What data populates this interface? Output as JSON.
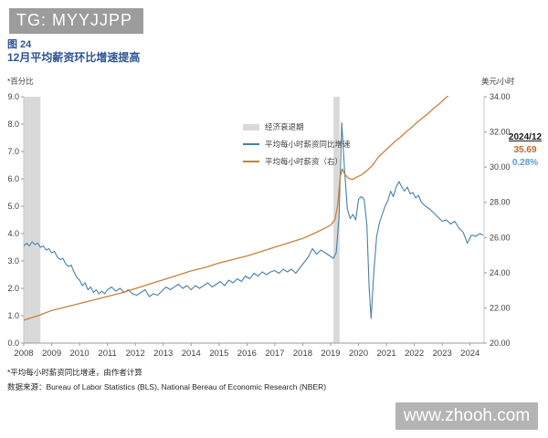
{
  "watermarks": {
    "telegram": "TG: MYYJJPP",
    "site": "www.zhooh.com"
  },
  "figure": {
    "number": "图 24",
    "title": "12月平均薪资环比增速提高"
  },
  "units": {
    "left": "*百分比",
    "right": "美元/小时"
  },
  "legend": {
    "items": [
      {
        "label": "经济衰退期",
        "kind": "band",
        "color": "#d9d9d9"
      },
      {
        "label": "平均每小时薪资同比增速",
        "kind": "line",
        "color": "#4a7fa8"
      },
      {
        "label": "平均每小时薪资（右）",
        "kind": "line",
        "color": "#c8803c"
      }
    ]
  },
  "callout": {
    "date": "2024/12",
    "value": "35.69",
    "percent": "0.28%",
    "value_color": "#c0662a",
    "percent_color": "#5b9bd5"
  },
  "footnotes": {
    "note": "*平均每小时薪资同比增速，由作者计算",
    "source": "数据来源：Bureau of Labor Statistics (BLS), National Bereau of Economic Research (NBER)"
  },
  "chart_data": {
    "type": "line",
    "title": "12月平均薪资环比增速提高",
    "x_domain": [
      2008,
      2024.5
    ],
    "x_ticks": [
      2008,
      2009,
      2010,
      2011,
      2012,
      2013,
      2014,
      2015,
      2016,
      2017,
      2018,
      2019,
      2020,
      2021,
      2022,
      2023,
      2024
    ],
    "left_axis": {
      "label": "*百分比",
      "min": 0,
      "max": 9,
      "tick_step": 1,
      "decimals": 1,
      "tick_labels": [
        "0.0",
        "1.0",
        "2.0",
        "3.0",
        "4.0",
        "5.0",
        "6.0",
        "7.0",
        "8.0",
        "9.0"
      ]
    },
    "right_axis": {
      "label": "美元/小时",
      "min": 20,
      "max": 34,
      "tick_step": 2,
      "decimals": 2,
      "tick_labels": [
        "20.00",
        "22.00",
        "24.00",
        "26.00",
        "28.00",
        "30.00",
        "32.00",
        "34.00"
      ]
    },
    "grid": false,
    "legend_position": "inside-top-left-of-plot",
    "band_color": "#d9d9d9",
    "recession_bands": [
      [
        2008.0,
        2008.6
      ],
      [
        2019.1,
        2019.32
      ]
    ],
    "series": [
      {
        "id": "yoy_growth",
        "name": "平均每小时薪资同比增速",
        "axis": "left",
        "color": "#4a7fa8",
        "width": 1.1,
        "points": [
          [
            2008.0,
            3.55
          ],
          [
            2008.1,
            3.65
          ],
          [
            2008.2,
            3.55
          ],
          [
            2008.3,
            3.7
          ],
          [
            2008.4,
            3.6
          ],
          [
            2008.5,
            3.65
          ],
          [
            2008.6,
            3.5
          ],
          [
            2008.7,
            3.55
          ],
          [
            2008.8,
            3.4
          ],
          [
            2008.9,
            3.45
          ],
          [
            2009.0,
            3.3
          ],
          [
            2009.1,
            3.35
          ],
          [
            2009.2,
            3.15
          ],
          [
            2009.3,
            3.05
          ],
          [
            2009.4,
            3.1
          ],
          [
            2009.5,
            2.9
          ],
          [
            2009.6,
            2.8
          ],
          [
            2009.7,
            2.85
          ],
          [
            2009.8,
            2.6
          ],
          [
            2009.9,
            2.4
          ],
          [
            2010.0,
            2.3
          ],
          [
            2010.1,
            2.1
          ],
          [
            2010.2,
            2.2
          ],
          [
            2010.3,
            1.95
          ],
          [
            2010.4,
            2.05
          ],
          [
            2010.5,
            1.85
          ],
          [
            2010.6,
            1.95
          ],
          [
            2010.7,
            1.8
          ],
          [
            2010.8,
            1.9
          ],
          [
            2010.9,
            1.8
          ],
          [
            2011.0,
            1.95
          ],
          [
            2011.15,
            2.05
          ],
          [
            2011.3,
            1.9
          ],
          [
            2011.45,
            2.0
          ],
          [
            2011.6,
            1.85
          ],
          [
            2011.75,
            1.95
          ],
          [
            2011.9,
            1.8
          ],
          [
            2012.05,
            1.75
          ],
          [
            2012.2,
            1.85
          ],
          [
            2012.35,
            1.95
          ],
          [
            2012.5,
            1.7
          ],
          [
            2012.65,
            1.8
          ],
          [
            2012.8,
            1.75
          ],
          [
            2012.95,
            1.9
          ],
          [
            2013.1,
            2.05
          ],
          [
            2013.25,
            1.95
          ],
          [
            2013.4,
            2.05
          ],
          [
            2013.55,
            2.15
          ],
          [
            2013.7,
            2.0
          ],
          [
            2013.85,
            2.1
          ],
          [
            2014.0,
            1.95
          ],
          [
            2014.15,
            2.1
          ],
          [
            2014.3,
            2.0
          ],
          [
            2014.45,
            2.1
          ],
          [
            2014.6,
            2.2
          ],
          [
            2014.75,
            2.05
          ],
          [
            2014.9,
            2.15
          ],
          [
            2015.05,
            2.25
          ],
          [
            2015.2,
            2.1
          ],
          [
            2015.35,
            2.3
          ],
          [
            2015.5,
            2.2
          ],
          [
            2015.65,
            2.35
          ],
          [
            2015.8,
            2.25
          ],
          [
            2015.95,
            2.45
          ],
          [
            2016.1,
            2.35
          ],
          [
            2016.25,
            2.55
          ],
          [
            2016.4,
            2.45
          ],
          [
            2016.55,
            2.6
          ],
          [
            2016.7,
            2.5
          ],
          [
            2016.85,
            2.6
          ],
          [
            2017.0,
            2.65
          ],
          [
            2017.15,
            2.55
          ],
          [
            2017.3,
            2.7
          ],
          [
            2017.45,
            2.6
          ],
          [
            2017.6,
            2.7
          ],
          [
            2017.75,
            2.55
          ],
          [
            2017.9,
            2.75
          ],
          [
            2018.05,
            2.95
          ],
          [
            2018.2,
            3.15
          ],
          [
            2018.35,
            3.45
          ],
          [
            2018.5,
            3.25
          ],
          [
            2018.65,
            3.4
          ],
          [
            2018.8,
            3.3
          ],
          [
            2018.95,
            3.2
          ],
          [
            2019.1,
            3.1
          ],
          [
            2019.2,
            3.3
          ],
          [
            2019.3,
            4.6
          ],
          [
            2019.4,
            8.05
          ],
          [
            2019.5,
            6.3
          ],
          [
            2019.6,
            4.9
          ],
          [
            2019.7,
            4.55
          ],
          [
            2019.8,
            4.7
          ],
          [
            2019.9,
            4.5
          ],
          [
            2020.0,
            5.25
          ],
          [
            2020.1,
            5.35
          ],
          [
            2020.2,
            5.25
          ],
          [
            2020.3,
            4.3
          ],
          [
            2020.38,
            2.0
          ],
          [
            2020.45,
            0.9
          ],
          [
            2020.55,
            2.6
          ],
          [
            2020.65,
            3.9
          ],
          [
            2020.75,
            4.4
          ],
          [
            2020.85,
            4.7
          ],
          [
            2020.95,
            5.0
          ],
          [
            2021.05,
            5.2
          ],
          [
            2021.15,
            5.55
          ],
          [
            2021.25,
            5.35
          ],
          [
            2021.35,
            5.7
          ],
          [
            2021.45,
            5.9
          ],
          [
            2021.55,
            5.7
          ],
          [
            2021.65,
            5.55
          ],
          [
            2021.75,
            5.7
          ],
          [
            2021.85,
            5.45
          ],
          [
            2021.95,
            5.5
          ],
          [
            2022.05,
            5.3
          ],
          [
            2022.15,
            5.4
          ],
          [
            2022.25,
            5.15
          ],
          [
            2022.4,
            5.0
          ],
          [
            2022.55,
            4.9
          ],
          [
            2022.7,
            4.75
          ],
          [
            2022.85,
            4.6
          ],
          [
            2023.0,
            4.45
          ],
          [
            2023.15,
            4.5
          ],
          [
            2023.3,
            4.35
          ],
          [
            2023.45,
            4.45
          ],
          [
            2023.6,
            4.2
          ],
          [
            2023.75,
            4.05
          ],
          [
            2023.9,
            3.65
          ],
          [
            2024.05,
            3.95
          ],
          [
            2024.2,
            3.9
          ],
          [
            2024.35,
            4.0
          ],
          [
            2024.45,
            3.95
          ]
        ]
      },
      {
        "id": "hourly_wage",
        "name": "平均每小时薪资（右）",
        "axis": "right",
        "color": "#c8803c",
        "width": 1.3,
        "points": [
          [
            2008.0,
            21.3
          ],
          [
            2008.5,
            21.55
          ],
          [
            2009.0,
            21.85
          ],
          [
            2009.5,
            22.05
          ],
          [
            2010.0,
            22.25
          ],
          [
            2010.5,
            22.45
          ],
          [
            2011.0,
            22.65
          ],
          [
            2011.5,
            22.85
          ],
          [
            2012.0,
            23.1
          ],
          [
            2012.5,
            23.35
          ],
          [
            2013.0,
            23.6
          ],
          [
            2013.5,
            23.85
          ],
          [
            2014.0,
            24.1
          ],
          [
            2014.5,
            24.3
          ],
          [
            2015.0,
            24.55
          ],
          [
            2015.5,
            24.75
          ],
          [
            2016.0,
            24.95
          ],
          [
            2016.5,
            25.2
          ],
          [
            2017.0,
            25.45
          ],
          [
            2017.5,
            25.7
          ],
          [
            2018.0,
            25.95
          ],
          [
            2018.5,
            26.3
          ],
          [
            2019.0,
            26.7
          ],
          [
            2019.15,
            27.0
          ],
          [
            2019.25,
            27.8
          ],
          [
            2019.35,
            29.5
          ],
          [
            2019.42,
            29.9
          ],
          [
            2019.5,
            29.6
          ],
          [
            2019.65,
            29.35
          ],
          [
            2019.8,
            29.3
          ],
          [
            2019.95,
            29.45
          ],
          [
            2020.1,
            29.55
          ],
          [
            2020.3,
            29.8
          ],
          [
            2020.5,
            30.1
          ],
          [
            2020.7,
            30.55
          ],
          [
            2020.9,
            30.85
          ],
          [
            2021.1,
            31.15
          ],
          [
            2021.3,
            31.45
          ],
          [
            2021.5,
            31.7
          ],
          [
            2021.7,
            32.0
          ],
          [
            2021.9,
            32.25
          ],
          [
            2022.1,
            32.55
          ],
          [
            2022.3,
            32.8
          ],
          [
            2022.5,
            33.05
          ],
          [
            2022.7,
            33.35
          ],
          [
            2022.9,
            33.6
          ],
          [
            2023.1,
            33.9
          ],
          [
            2023.25,
            34.1
          ],
          [
            2023.5,
            34.45
          ],
          [
            2024.0,
            35.1
          ],
          [
            2024.45,
            35.69
          ]
        ]
      }
    ],
    "last_point": {
      "date": "2024/12",
      "wage_level": "35.69",
      "mom_growth": "0.28%"
    }
  }
}
